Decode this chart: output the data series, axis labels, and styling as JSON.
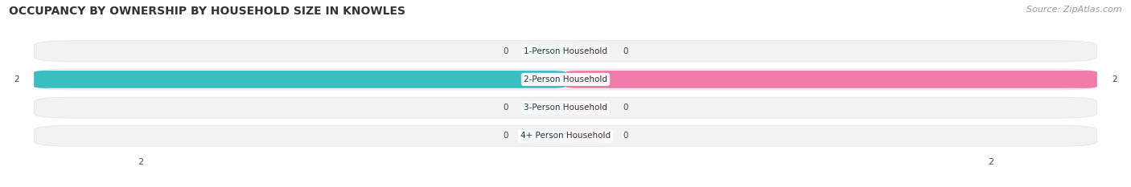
{
  "title": "OCCUPANCY BY OWNERSHIP BY HOUSEHOLD SIZE IN KNOWLES",
  "source": "Source: ZipAtlas.com",
  "categories": [
    "1-Person Household",
    "2-Person Household",
    "3-Person Household",
    "4+ Person Household"
  ],
  "owner_values": [
    0,
    2,
    0,
    0
  ],
  "renter_values": [
    0,
    2,
    0,
    0
  ],
  "owner_color": "#3bbdc4",
  "renter_color": "#f07aaa",
  "bar_bg_color": "#f2f2f2",
  "bar_bg_edge_color": "#e0e0e0",
  "xlim": [
    -2.5,
    2.5
  ],
  "max_val": 2,
  "bar_height": 0.62,
  "title_fontsize": 10,
  "source_fontsize": 8,
  "tick_fontsize": 8,
  "label_fontsize": 7.5,
  "value_fontsize": 7.5,
  "background_color": "#ffffff"
}
